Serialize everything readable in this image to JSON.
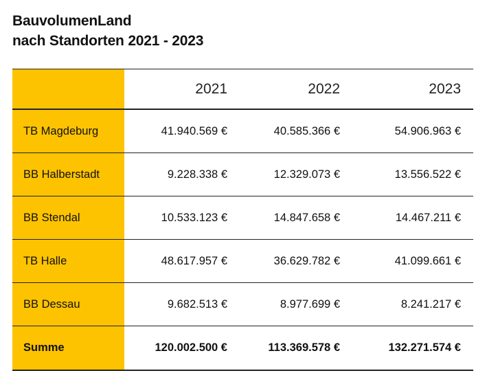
{
  "title": {
    "line1": "BauvolumenLand",
    "line2": "nach Standorten 2021 - 2023"
  },
  "table": {
    "columns": [
      "2021",
      "2022",
      "2023"
    ],
    "rows": [
      {
        "label": "TB Magdeburg",
        "values": [
          "41.940.569 €",
          "40.585.366 €",
          "54.906.963 €"
        ]
      },
      {
        "label": "BB Halberstadt",
        "values": [
          "9.228.338 €",
          "12.329.073 €",
          "13.556.522 €"
        ]
      },
      {
        "label": "BB Stendal",
        "values": [
          "10.533.123 €",
          "14.847.658 €",
          "14.467.211 €"
        ]
      },
      {
        "label": "TB Halle",
        "values": [
          "48.617.957 €",
          "36.629.782 €",
          "41.099.661 €"
        ]
      },
      {
        "label": "BB Dessau",
        "values": [
          "9.682.513 €",
          "8.977.699 €",
          "8.241.217 €"
        ]
      }
    ],
    "total": {
      "label": "Summe",
      "values": [
        "120.002.500 €",
        "113.369.578 €",
        "132.271.574 €"
      ]
    }
  },
  "colors": {
    "accent": "#FDC300",
    "text": "#111111",
    "rule": "#222222"
  }
}
